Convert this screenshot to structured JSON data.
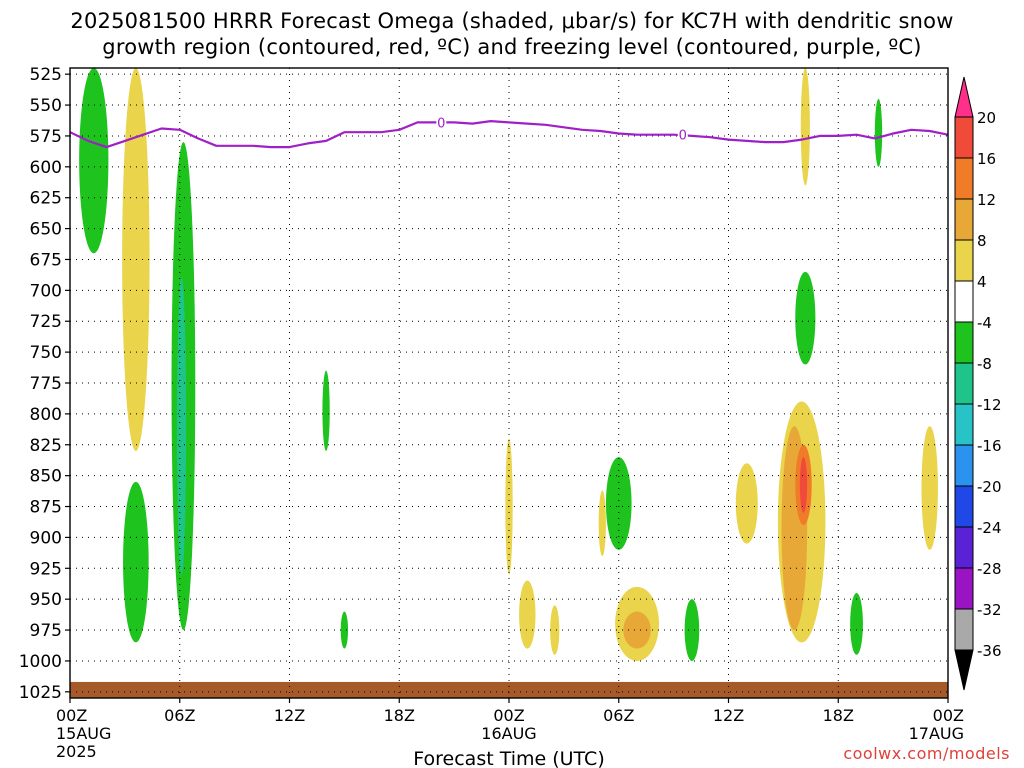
{
  "title_line1": "2025081500 HRRR Forecast Omega (shaded, μbar/s) for KC7H with dendritic snow",
  "title_line2": "growth region (contoured, red, ºC) and freezing level (contoured, purple, ºC)",
  "credit": "coolwx.com/models",
  "chart_data": {
    "type": "heatmap",
    "xlabel": "Forecast Time (UTC)",
    "ylabel": "",
    "x_ticks": [
      {
        "hour": 0,
        "label": "00Z",
        "sub1": "15AUG",
        "sub2": "2025"
      },
      {
        "hour": 6,
        "label": "06Z",
        "sub1": "",
        "sub2": ""
      },
      {
        "hour": 12,
        "label": "12Z",
        "sub1": "",
        "sub2": ""
      },
      {
        "hour": 18,
        "label": "18Z",
        "sub1": "",
        "sub2": ""
      },
      {
        "hour": 24,
        "label": "00Z",
        "sub1": "16AUG",
        "sub2": ""
      },
      {
        "hour": 30,
        "label": "06Z",
        "sub1": "",
        "sub2": ""
      },
      {
        "hour": 36,
        "label": "12Z",
        "sub1": "",
        "sub2": ""
      },
      {
        "hour": 42,
        "label": "18Z",
        "sub1": "",
        "sub2": ""
      },
      {
        "hour": 48,
        "label": "00Z",
        "sub1": "17AUG",
        "sub2": ""
      }
    ],
    "xlim": [
      0,
      48
    ],
    "y_ticks": [
      525,
      550,
      575,
      600,
      625,
      650,
      675,
      700,
      725,
      750,
      775,
      800,
      825,
      850,
      875,
      900,
      925,
      950,
      975,
      1000,
      1025
    ],
    "ylim": [
      1030,
      520
    ],
    "grid": true,
    "colorbar": {
      "labels": [
        "20",
        "16",
        "12",
        "8",
        "4",
        "-4",
        "-8",
        "-12",
        "-16",
        "-20",
        "-24",
        "-28",
        "-32",
        "-36"
      ],
      "bands": [
        "#ff2f8a",
        "#f04a3a",
        "#f07c2a",
        "#e8a838",
        "#e9d44b",
        "#ffffff",
        "#1ec31e",
        "#1fc48a",
        "#27c3c7",
        "#2b93ee",
        "#1f48e6",
        "#5a22d6",
        "#9b14c4",
        "#a9a9a9",
        "#000000"
      ]
    },
    "freezing_level": {
      "color": "#a020c8",
      "hours": [
        0,
        1,
        2,
        3,
        4,
        5,
        6,
        7,
        8,
        9,
        10,
        11,
        12,
        13,
        14,
        15,
        16,
        17,
        18,
        19,
        20,
        21,
        22,
        23,
        24,
        25,
        26,
        27,
        28,
        29,
        30,
        31,
        32,
        33,
        34,
        35,
        36,
        37,
        38,
        39,
        40,
        41,
        42,
        43,
        44,
        45,
        46,
        47,
        48
      ],
      "pressure": [
        572,
        579,
        584,
        579,
        574,
        569,
        570,
        577,
        583,
        583,
        583,
        584,
        584,
        581,
        579,
        572,
        572,
        572,
        570,
        564,
        564,
        564,
        565,
        563,
        564,
        565,
        566,
        568,
        570,
        571,
        573,
        574,
        574,
        574,
        575,
        576,
        578,
        579,
        580,
        580,
        578,
        575,
        575,
        574,
        577,
        573,
        570,
        571,
        574
      ],
      "labels": [
        {
          "hour": 20.3,
          "pressure": 564,
          "text": "0"
        },
        {
          "hour": 33.5,
          "pressure": 574,
          "text": "0"
        }
      ]
    },
    "omega_regions": [
      {
        "value": -6,
        "color": "#1ec31e",
        "hour": 1.3,
        "p_top": 520,
        "p_bottom": 670,
        "width_h": 1.6
      },
      {
        "value": 6,
        "color": "#e9d44b",
        "hour": 3.6,
        "p_top": 520,
        "p_bottom": 830,
        "width_h": 1.5
      },
      {
        "value": -6,
        "color": "#1ec31e",
        "hour": 6.2,
        "p_top": 580,
        "p_bottom": 975,
        "width_h": 1.3
      },
      {
        "value": -12,
        "color": "#1fc48a",
        "hour": 6.1,
        "p_top": 690,
        "p_bottom": 930,
        "width_h": 0.5
      },
      {
        "value": -6,
        "color": "#1ec31e",
        "hour": 3.6,
        "p_top": 855,
        "p_bottom": 985,
        "width_h": 1.4
      },
      {
        "value": -6,
        "color": "#1ec31e",
        "hour": 14.0,
        "p_top": 765,
        "p_bottom": 830,
        "width_h": 0.4
      },
      {
        "value": -6,
        "color": "#1ec31e",
        "hour": 15.0,
        "p_top": 960,
        "p_bottom": 990,
        "width_h": 0.4
      },
      {
        "value": 6,
        "color": "#e9d44b",
        "hour": 24.0,
        "p_top": 820,
        "p_bottom": 930,
        "width_h": 0.4
      },
      {
        "value": 6,
        "color": "#e9d44b",
        "hour": 25.0,
        "p_top": 935,
        "p_bottom": 990,
        "width_h": 0.9
      },
      {
        "value": 6,
        "color": "#e9d44b",
        "hour": 26.5,
        "p_top": 955,
        "p_bottom": 995,
        "width_h": 0.5
      },
      {
        "value": 6,
        "color": "#e9d44b",
        "hour": 29.1,
        "p_top": 862,
        "p_bottom": 915,
        "width_h": 0.4
      },
      {
        "value": -6,
        "color": "#1ec31e",
        "hour": 30.0,
        "p_top": 835,
        "p_bottom": 910,
        "width_h": 1.4
      },
      {
        "value": 6,
        "color": "#e9d44b",
        "hour": 31.0,
        "p_top": 940,
        "p_bottom": 1000,
        "width_h": 2.4
      },
      {
        "value": 10,
        "color": "#e8a838",
        "hour": 31.0,
        "p_top": 960,
        "p_bottom": 990,
        "width_h": 1.5
      },
      {
        "value": -6,
        "color": "#1ec31e",
        "hour": 34.0,
        "p_top": 950,
        "p_bottom": 1000,
        "width_h": 0.8
      },
      {
        "value": 6,
        "color": "#e9d44b",
        "hour": 37.0,
        "p_top": 840,
        "p_bottom": 905,
        "width_h": 1.2
      },
      {
        "value": 6,
        "color": "#e9d44b",
        "hour": 40.2,
        "p_top": 520,
        "p_bottom": 615,
        "width_h": 0.5
      },
      {
        "value": -6,
        "color": "#1ec31e",
        "hour": 40.2,
        "p_top": 685,
        "p_bottom": 760,
        "width_h": 1.1
      },
      {
        "value": 6,
        "color": "#e9d44b",
        "hour": 40.0,
        "p_top": 790,
        "p_bottom": 985,
        "width_h": 2.6
      },
      {
        "value": 10,
        "color": "#e8a838",
        "hour": 39.6,
        "p_top": 810,
        "p_bottom": 975,
        "width_h": 1.4
      },
      {
        "value": 14,
        "color": "#f07c2a",
        "hour": 40.1,
        "p_top": 825,
        "p_bottom": 890,
        "width_h": 0.9
      },
      {
        "value": 18,
        "color": "#f04a3a",
        "hour": 40.1,
        "p_top": 835,
        "p_bottom": 880,
        "width_h": 0.4
      },
      {
        "value": -6,
        "color": "#1ec31e",
        "hour": 43.0,
        "p_top": 945,
        "p_bottom": 995,
        "width_h": 0.7
      },
      {
        "value": -6,
        "color": "#1ec31e",
        "hour": 44.2,
        "p_top": 545,
        "p_bottom": 600,
        "width_h": 0.4
      },
      {
        "value": 6,
        "color": "#e9d44b",
        "hour": 47.0,
        "p_top": 810,
        "p_bottom": 910,
        "width_h": 0.9
      }
    ],
    "surface": {
      "color": "#a65a2a",
      "p_top": 1017,
      "p_bottom": 1032
    }
  }
}
